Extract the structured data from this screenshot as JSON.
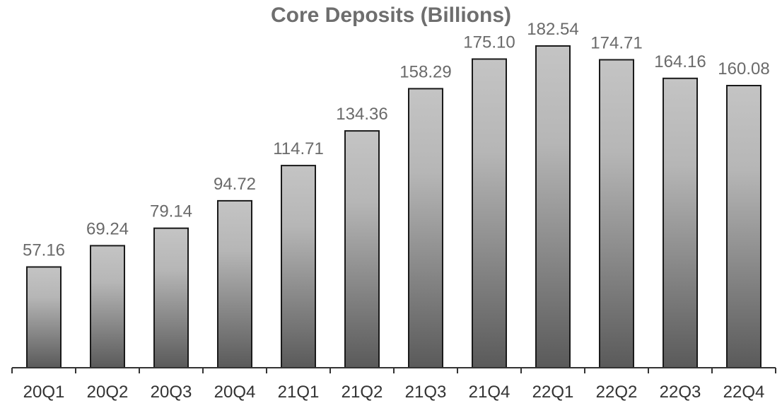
{
  "chart_data": {
    "type": "bar",
    "title": "Core Deposits (Billions)",
    "xlabel": "",
    "ylabel": "",
    "categories": [
      "20Q1",
      "20Q2",
      "20Q3",
      "20Q4",
      "21Q1",
      "21Q2",
      "21Q3",
      "21Q4",
      "22Q1",
      "22Q2",
      "22Q3",
      "22Q4"
    ],
    "values": [
      57.16,
      69.24,
      79.14,
      94.72,
      114.71,
      134.36,
      158.29,
      175.1,
      182.54,
      174.71,
      164.16,
      160.08
    ],
    "value_labels": [
      "57.16",
      "69.24",
      "79.14",
      "94.72",
      "114.71",
      "134.36",
      "158.29",
      "175.10",
      "182.54",
      "174.71",
      "164.16",
      "160.08"
    ],
    "ylim": [
      0,
      182.54
    ],
    "grid": false,
    "legend": "none",
    "colors": {
      "bar_light": "#c4c4c4",
      "bar_dark": "#5a5a5a",
      "bar_outline": "#1a1a1a"
    }
  }
}
